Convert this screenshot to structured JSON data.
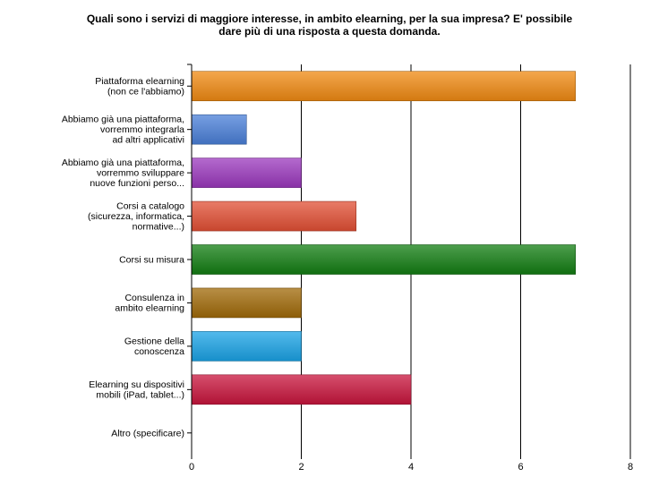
{
  "chart_data": {
    "type": "bar",
    "orientation": "horizontal",
    "title": "Quali sono i servizi di maggiore interesse, in ambito elearning, per la sua impresa? E' possibile dare più di una risposta a questa domanda.",
    "title_lines": [
      "Quali sono i servizi di maggiore interesse, in ambito elearning, per la sua impresa? E' possibile",
      "dare più di una risposta a questa domanda."
    ],
    "categories": [
      [
        "Piattaforma elearning",
        "(non ce l'abbiamo)"
      ],
      [
        "Abbiamo già una piattaforma,",
        "vorremmo integrarla",
        "ad altri applicativi"
      ],
      [
        "Abbiamo già una piattaforma,",
        "vorremmo sviluppare",
        "nuove funzioni perso..."
      ],
      [
        "Corsi a catalogo",
        "(sicurezza, informatica,",
        "normative...)"
      ],
      [
        "Corsi su misura"
      ],
      [
        "Consulenza in",
        "ambito elearning"
      ],
      [
        "Gestione della",
        "conoscenza"
      ],
      [
        "Elearning su dispositivi",
        "mobili (iPad, tablet...)"
      ],
      [
        "Altro (specificare)"
      ]
    ],
    "values": [
      7,
      1,
      2,
      3,
      7,
      2,
      2,
      4,
      0
    ],
    "colors": [
      "#f08a12",
      "#4a7fd8",
      "#9b38bd",
      "#e24f34",
      "#127d12",
      "#a06a08",
      "#1aa3e6",
      "#c8143c",
      "#999999"
    ],
    "xlim": [
      0,
      8
    ],
    "xticks": [
      0,
      2,
      4,
      6,
      8
    ],
    "grid": true,
    "legend": "none"
  }
}
